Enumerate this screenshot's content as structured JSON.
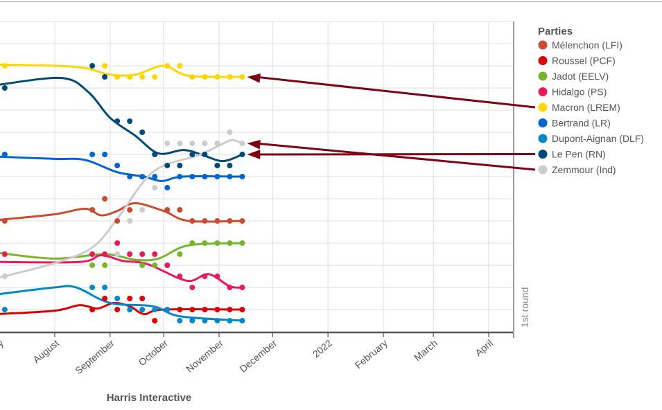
{
  "chart_data": {
    "type": "scatter",
    "title": "",
    "xlabel": "Harris Interactive",
    "ylabel": "",
    "ylim": [
      0,
      28
    ],
    "y_grid_step": 2,
    "grid": true,
    "x_domain_start": "2021-07-01",
    "x_ticks": [
      {
        "date": "2021-07-01",
        "label": "July"
      },
      {
        "date": "2021-08-01",
        "label": "August"
      },
      {
        "date": "2021-09-01",
        "label": "September"
      },
      {
        "date": "2021-10-01",
        "label": "October"
      },
      {
        "date": "2021-11-01",
        "label": "November"
      },
      {
        "date": "2021-12-01",
        "label": "December"
      },
      {
        "date": "2022-01-01",
        "label": "2022"
      },
      {
        "date": "2022-02-01",
        "label": "February"
      },
      {
        "date": "2022-03-01",
        "label": "March"
      },
      {
        "date": "2022-04-01",
        "label": "April"
      }
    ],
    "first_round_label": "1st round",
    "legend_title": "Parties",
    "legend_placement": "right",
    "series": [
      {
        "name": "Mélenchon (LFI)",
        "color": "#cc4b2f",
        "points": [
          [
            "2021-07-04",
            10
          ],
          [
            "2021-08-22",
            11
          ],
          [
            "2021-08-29",
            12
          ],
          [
            "2021-09-05",
            10
          ],
          [
            "2021-09-12",
            11
          ],
          [
            "2021-10-03",
            11
          ],
          [
            "2021-10-10",
            11
          ],
          [
            "2021-10-17",
            10
          ],
          [
            "2021-10-24",
            10
          ],
          [
            "2021-10-31",
            10
          ],
          [
            "2021-11-07",
            10
          ],
          [
            "2021-11-14",
            10
          ]
        ],
        "trend": [
          [
            "2021-07-01",
            10.1
          ],
          [
            "2021-08-01",
            10.6
          ],
          [
            "2021-08-18",
            11.1
          ],
          [
            "2021-08-27",
            10.5
          ],
          [
            "2021-09-05",
            10.9
          ],
          [
            "2021-09-15",
            11.6
          ],
          [
            "2021-10-01",
            10.9
          ],
          [
            "2021-10-15",
            10.0
          ],
          [
            "2021-11-14",
            10.0
          ]
        ]
      },
      {
        "name": "Roussel (PCF)",
        "color": "#dd0000",
        "points": [
          [
            "2021-08-22",
            2
          ],
          [
            "2021-08-29",
            3
          ],
          [
            "2021-09-05",
            2
          ],
          [
            "2021-09-12",
            3
          ],
          [
            "2021-09-19",
            3
          ],
          [
            "2021-09-26",
            1
          ],
          [
            "2021-10-10",
            2
          ],
          [
            "2021-10-17",
            2
          ],
          [
            "2021-10-24",
            2
          ],
          [
            "2021-10-31",
            2
          ],
          [
            "2021-11-07",
            2
          ],
          [
            "2021-11-14",
            2
          ]
        ],
        "trend": [
          [
            "2021-07-01",
            1.6
          ],
          [
            "2021-08-01",
            1.9
          ],
          [
            "2021-08-15",
            2.4
          ],
          [
            "2021-08-25",
            2.1
          ],
          [
            "2021-09-03",
            2.6
          ],
          [
            "2021-09-12",
            2.3
          ],
          [
            "2021-09-20",
            1.6
          ],
          [
            "2021-10-01",
            2.0
          ],
          [
            "2021-11-14",
            2.0
          ]
        ]
      },
      {
        "name": "Jadot (EELV)",
        "color": "#77b52a",
        "points": [
          [
            "2021-08-22",
            6
          ],
          [
            "2021-08-29",
            6
          ],
          [
            "2021-09-19",
            6
          ],
          [
            "2021-09-26",
            6
          ],
          [
            "2021-10-10",
            7
          ],
          [
            "2021-10-17",
            8
          ],
          [
            "2021-10-24",
            8
          ],
          [
            "2021-10-31",
            8
          ],
          [
            "2021-11-07",
            8
          ],
          [
            "2021-11-14",
            8
          ]
        ],
        "trend": [
          [
            "2021-07-01",
            7.1
          ],
          [
            "2021-08-01",
            6.6
          ],
          [
            "2021-08-29",
            7.0
          ],
          [
            "2021-09-15",
            6.5
          ],
          [
            "2021-09-28",
            6.6
          ],
          [
            "2021-10-15",
            7.8
          ],
          [
            "2021-11-14",
            8.0
          ]
        ]
      },
      {
        "name": "Hidalgo (PS)",
        "color": "#ec1a5a",
        "points": [
          [
            "2021-07-04",
            7
          ],
          [
            "2021-08-22",
            7
          ],
          [
            "2021-08-29",
            7
          ],
          [
            "2021-09-05",
            8
          ],
          [
            "2021-09-12",
            7
          ],
          [
            "2021-09-19",
            7
          ],
          [
            "2021-09-26",
            7
          ],
          [
            "2021-10-03",
            6
          ],
          [
            "2021-10-10",
            5
          ],
          [
            "2021-10-17",
            4
          ],
          [
            "2021-10-24",
            5
          ],
          [
            "2021-10-31",
            5
          ],
          [
            "2021-11-07",
            4
          ],
          [
            "2021-11-14",
            4
          ]
        ],
        "trend": [
          [
            "2021-07-01",
            6.3
          ],
          [
            "2021-08-15",
            6.3
          ],
          [
            "2021-08-27",
            6.9
          ],
          [
            "2021-09-08",
            6.4
          ],
          [
            "2021-09-22",
            6.1
          ],
          [
            "2021-10-14",
            4.6
          ],
          [
            "2021-10-26",
            5.2
          ],
          [
            "2021-11-07",
            4.1
          ],
          [
            "2021-11-14",
            4.0
          ]
        ]
      },
      {
        "name": "Macron (LREM)",
        "color": "#ffd600",
        "points": [
          [
            "2021-07-04",
            24
          ],
          [
            "2021-08-29",
            24
          ],
          [
            "2021-09-05",
            23
          ],
          [
            "2021-09-12",
            23
          ],
          [
            "2021-09-19",
            23
          ],
          [
            "2021-09-26",
            23
          ],
          [
            "2021-10-03",
            24
          ],
          [
            "2021-10-10",
            24
          ],
          [
            "2021-10-17",
            23
          ],
          [
            "2021-10-24",
            23
          ],
          [
            "2021-10-31",
            23
          ],
          [
            "2021-11-07",
            23
          ],
          [
            "2021-11-14",
            23
          ]
        ],
        "trend": [
          [
            "2021-07-01",
            24.1
          ],
          [
            "2021-08-01",
            24.0
          ],
          [
            "2021-08-18",
            23.8
          ],
          [
            "2021-09-01",
            23.2
          ],
          [
            "2021-09-15",
            23.2
          ],
          [
            "2021-10-01",
            24.0
          ],
          [
            "2021-10-15",
            23.1
          ],
          [
            "2021-11-14",
            23.0
          ]
        ]
      },
      {
        "name": "Bertrand (LR)",
        "color": "#0066cc",
        "points": [
          [
            "2021-07-04",
            16
          ],
          [
            "2021-08-22",
            16
          ],
          [
            "2021-08-29",
            16
          ],
          [
            "2021-09-05",
            15
          ],
          [
            "2021-09-12",
            14
          ],
          [
            "2021-09-19",
            14
          ],
          [
            "2021-09-26",
            14
          ],
          [
            "2021-10-03",
            13
          ],
          [
            "2021-10-10",
            14
          ],
          [
            "2021-10-17",
            14
          ],
          [
            "2021-10-24",
            14
          ],
          [
            "2021-10-31",
            14
          ],
          [
            "2021-11-07",
            14
          ],
          [
            "2021-11-14",
            14
          ]
        ],
        "trend": [
          [
            "2021-07-01",
            15.8
          ],
          [
            "2021-08-01",
            15.6
          ],
          [
            "2021-08-18",
            15.5
          ],
          [
            "2021-09-05",
            14.4
          ],
          [
            "2021-09-20",
            14.0
          ],
          [
            "2021-09-30",
            13.6
          ],
          [
            "2021-10-12",
            14.0
          ],
          [
            "2021-11-14",
            14.0
          ]
        ]
      },
      {
        "name": "Dupont-Aignan (DLF)",
        "color": "#0088cc",
        "points": [
          [
            "2021-07-04",
            2
          ],
          [
            "2021-08-22",
            4
          ],
          [
            "2021-08-29",
            4
          ],
          [
            "2021-09-05",
            3
          ],
          [
            "2021-09-12",
            2
          ],
          [
            "2021-09-19",
            2
          ],
          [
            "2021-09-26",
            2
          ],
          [
            "2021-10-03",
            2
          ],
          [
            "2021-10-10",
            1
          ],
          [
            "2021-10-17",
            1
          ],
          [
            "2021-10-24",
            1
          ],
          [
            "2021-10-31",
            1
          ],
          [
            "2021-11-07",
            1
          ],
          [
            "2021-11-14",
            1
          ]
        ],
        "trend": [
          [
            "2021-07-01",
            3.4
          ],
          [
            "2021-08-01",
            4.0
          ],
          [
            "2021-08-13",
            4.0
          ],
          [
            "2021-09-01",
            2.6
          ],
          [
            "2021-09-25",
            2.3
          ],
          [
            "2021-10-10",
            1.4
          ],
          [
            "2021-11-14",
            1.0
          ]
        ]
      },
      {
        "name": "Le Pen (RN)",
        "color": "#004a77",
        "points": [
          [
            "2021-07-04",
            22
          ],
          [
            "2021-08-22",
            24
          ],
          [
            "2021-08-29",
            23
          ],
          [
            "2021-09-05",
            19
          ],
          [
            "2021-09-12",
            19
          ],
          [
            "2021-09-19",
            18
          ],
          [
            "2021-09-26",
            16
          ],
          [
            "2021-10-03",
            15
          ],
          [
            "2021-10-10",
            15
          ],
          [
            "2021-10-17",
            16
          ],
          [
            "2021-10-24",
            16
          ],
          [
            "2021-10-31",
            15
          ],
          [
            "2021-11-07",
            15
          ],
          [
            "2021-11-14",
            16
          ]
        ],
        "trend": [
          [
            "2021-07-01",
            22.3
          ],
          [
            "2021-08-05",
            22.9
          ],
          [
            "2021-08-20",
            21.6
          ],
          [
            "2021-09-01",
            19.3
          ],
          [
            "2021-09-15",
            17.7
          ],
          [
            "2021-09-28",
            16.1
          ],
          [
            "2021-10-12",
            16.4
          ],
          [
            "2021-10-22",
            16.0
          ],
          [
            "2021-11-03",
            15.4
          ],
          [
            "2021-11-14",
            16.0
          ]
        ]
      },
      {
        "name": "Zemmour (Ind)",
        "color": "#cccccc",
        "points": [
          [
            "2021-07-04",
            5
          ],
          [
            "2021-09-05",
            7
          ],
          [
            "2021-09-12",
            10
          ],
          [
            "2021-09-19",
            11
          ],
          [
            "2021-09-26",
            13
          ],
          [
            "2021-10-03",
            17
          ],
          [
            "2021-10-10",
            17
          ],
          [
            "2021-10-17",
            17
          ],
          [
            "2021-10-24",
            17
          ],
          [
            "2021-10-31",
            17
          ],
          [
            "2021-11-07",
            18
          ],
          [
            "2021-11-14",
            17
          ]
        ],
        "trend": [
          [
            "2021-07-01",
            4.9
          ],
          [
            "2021-08-01",
            6.2
          ],
          [
            "2021-08-22",
            7.6
          ],
          [
            "2021-09-05",
            10.2
          ],
          [
            "2021-09-20",
            13.6
          ],
          [
            "2021-10-01",
            15.0
          ],
          [
            "2021-10-20",
            15.9
          ],
          [
            "2021-11-01",
            16.8
          ],
          [
            "2021-11-08",
            17.3
          ],
          [
            "2021-11-14",
            17.0
          ]
        ]
      }
    ],
    "annotations": {
      "arrow_color": "#800014",
      "arrows_to": [
        "Macron (LREM)",
        "Le Pen (RN)",
        "Zemmour (Ind)"
      ]
    }
  }
}
